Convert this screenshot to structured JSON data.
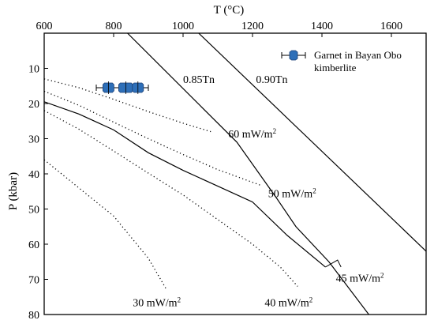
{
  "chart_data": {
    "type": "line",
    "x_axis": {
      "label": "T (°C)",
      "position": "top",
      "range": [
        600,
        1700
      ],
      "ticks": [
        600,
        800,
        1000,
        1200,
        1400,
        1600
      ],
      "tick_labels": [
        "600",
        "800",
        "1000",
        "1200",
        "1400",
        "1600"
      ]
    },
    "y_axis": {
      "label": "P (kbar)",
      "inverted": true,
      "range": [
        0,
        80
      ],
      "ticks": [
        10,
        20,
        30,
        40,
        50,
        60,
        70,
        80
      ],
      "tick_labels": [
        "10",
        "20",
        "30",
        "40",
        "50",
        "60",
        "70",
        "80"
      ]
    },
    "grid": false,
    "series": [
      {
        "name": "0.85Tn",
        "style": "solid",
        "points": [
          [
            840,
            0
          ],
          [
            1155,
            31
          ],
          [
            1270,
            47
          ],
          [
            1325,
            55
          ],
          [
            1420,
            65
          ],
          [
            1535,
            80
          ]
        ]
      },
      {
        "name": "0.90Tn",
        "style": "solid",
        "points": [
          [
            1045,
            0
          ],
          [
            1700,
            62
          ]
        ]
      },
      {
        "name": "60 mW/m²",
        "style": "dotted",
        "points": [
          [
            600,
            13
          ],
          [
            700,
            15.5
          ],
          [
            800,
            18.8
          ],
          [
            900,
            22.3
          ],
          [
            1000,
            25.6
          ],
          [
            1080,
            28
          ]
        ]
      },
      {
        "name": "50 mW/m²",
        "style": "dotted",
        "points": [
          [
            600,
            16.5
          ],
          [
            700,
            20.5
          ],
          [
            800,
            25.3
          ],
          [
            900,
            30
          ],
          [
            1000,
            34.5
          ],
          [
            1100,
            38.8
          ],
          [
            1225,
            43.3
          ]
        ]
      },
      {
        "name": "45 mW/m²",
        "style": "solid",
        "points": [
          [
            600,
            19.5
          ],
          [
            700,
            23
          ],
          [
            800,
            27.5
          ],
          [
            900,
            34
          ],
          [
            1000,
            39
          ],
          [
            1100,
            43.5
          ],
          [
            1200,
            48
          ],
          [
            1300,
            57.5
          ],
          [
            1410,
            66.5
          ]
        ]
      },
      {
        "name": "40 mW/m²",
        "style": "dotted",
        "points": [
          [
            600,
            22
          ],
          [
            700,
            27.3
          ],
          [
            800,
            33.5
          ],
          [
            900,
            39.8
          ],
          [
            1000,
            46
          ],
          [
            1100,
            53
          ],
          [
            1200,
            60
          ],
          [
            1280,
            66.5
          ],
          [
            1330,
            72
          ]
        ]
      },
      {
        "name": "30 mW/m²",
        "style": "dotted",
        "points": [
          [
            600,
            36
          ],
          [
            700,
            44
          ],
          [
            800,
            52
          ],
          [
            850,
            58
          ],
          [
            900,
            64
          ],
          [
            950,
            72.5
          ]
        ]
      }
    ],
    "curve_labels": [
      {
        "text": "0.85Tn",
        "x": 1000,
        "y": 13
      },
      {
        "text": "0.90Tn",
        "x": 1210,
        "y": 13
      },
      {
        "text": "60 mW/m",
        "sup": "2",
        "x": 1130,
        "y": 28.5
      },
      {
        "text": "50 mW/m",
        "sup": "2",
        "x": 1245,
        "y": 45.5
      },
      {
        "text": "45 mW/m",
        "sup": "2",
        "x": 1440,
        "y": 69.5
      },
      {
        "text": "40 mW/m",
        "sup": "2",
        "x": 1235,
        "y": 76.5
      },
      {
        "text": "30 mW/m",
        "sup": "2",
        "x": 855,
        "y": 76.5
      }
    ],
    "leader_line": [
      [
        1410,
        66.5
      ],
      [
        1445,
        64.5
      ],
      [
        1455,
        66.5
      ]
    ],
    "garnet_data": {
      "name": "Garnet in Bayan Obo kimberlite",
      "legend_lines": [
        "Garnet in Bayan Obo",
        "kimberlite"
      ],
      "legend_location": "top-right",
      "range": [
        750,
        900
      ],
      "mean": 830,
      "P": 15.5,
      "markers": [
        {
          "x": 785,
          "P": 15.5,
          "error": 12
        },
        {
          "x": 835,
          "P": 15.5,
          "error": 18
        },
        {
          "x": 870,
          "P": 15.5,
          "error": 12
        }
      ]
    },
    "colors": {
      "lines": "#000000",
      "marker": "#2e6fb8"
    }
  }
}
